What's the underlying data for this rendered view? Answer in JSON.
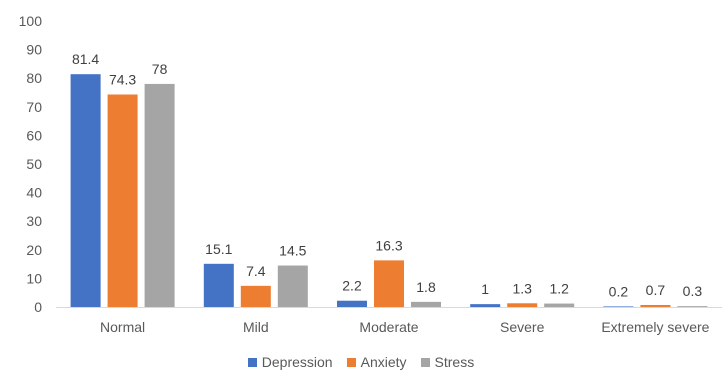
{
  "chart_data": {
    "type": "bar",
    "categories": [
      "Normal",
      "Mild",
      "Moderate",
      "Severe",
      "Extremely severe"
    ],
    "series": [
      {
        "name": "Depression",
        "values": [
          81.4,
          15.1,
          2.2,
          1,
          0.2
        ],
        "color": "#4472C4"
      },
      {
        "name": "Anxiety",
        "values": [
          74.3,
          7.4,
          16.3,
          1.3,
          0.7
        ],
        "color": "#ED7D31"
      },
      {
        "name": "Stress",
        "values": [
          78,
          14.5,
          1.8,
          1.2,
          0.3
        ],
        "color": "#A5A5A5"
      }
    ],
    "data_labels": [
      [
        "81.4",
        "15.1",
        "2.2",
        "1",
        "0.2"
      ],
      [
        "74.3",
        "7.4",
        "16.3",
        "1.3",
        "0.7"
      ],
      [
        "78",
        "14.5",
        "1.8",
        "1.2",
        "0.3"
      ]
    ],
    "title": "",
    "xlabel": "",
    "ylabel": "",
    "ylim": [
      0,
      100
    ],
    "yticks": [
      "0",
      "10",
      "20",
      "30",
      "40",
      "50",
      "60",
      "70",
      "80",
      "90",
      "100"
    ],
    "grid": false,
    "legend_position": "bottom"
  }
}
